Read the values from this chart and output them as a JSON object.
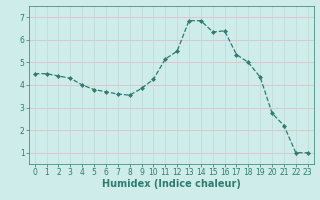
{
  "x": [
    0,
    1,
    2,
    3,
    4,
    5,
    6,
    7,
    8,
    9,
    10,
    11,
    12,
    13,
    14,
    15,
    16,
    17,
    18,
    19,
    20,
    21,
    22,
    23
  ],
  "y": [
    4.5,
    4.5,
    4.4,
    4.3,
    4.0,
    3.8,
    3.7,
    3.6,
    3.55,
    3.85,
    4.25,
    5.15,
    5.5,
    6.85,
    6.85,
    6.35,
    6.4,
    5.35,
    5.0,
    4.35,
    2.75,
    2.2,
    1.0,
    1.0
  ],
  "line_color": "#2e7d6e",
  "marker": "D",
  "markersize": 2.0,
  "linewidth": 0.9,
  "linestyle": "--",
  "bg_color": "#cdecea",
  "grid_color_x": "#c0d8d4",
  "grid_color_y": "#e8b8b8",
  "xlabel": "Humidex (Indice chaleur)",
  "xlim": [
    -0.5,
    23.5
  ],
  "ylim": [
    0.5,
    7.5
  ],
  "yticks": [
    1,
    2,
    3,
    4,
    5,
    6,
    7
  ],
  "xticks": [
    0,
    1,
    2,
    3,
    4,
    5,
    6,
    7,
    8,
    9,
    10,
    11,
    12,
    13,
    14,
    15,
    16,
    17,
    18,
    19,
    20,
    21,
    22,
    23
  ],
  "tick_fontsize": 5.5,
  "xlabel_fontsize": 7,
  "tick_color": "#2e7d6e"
}
